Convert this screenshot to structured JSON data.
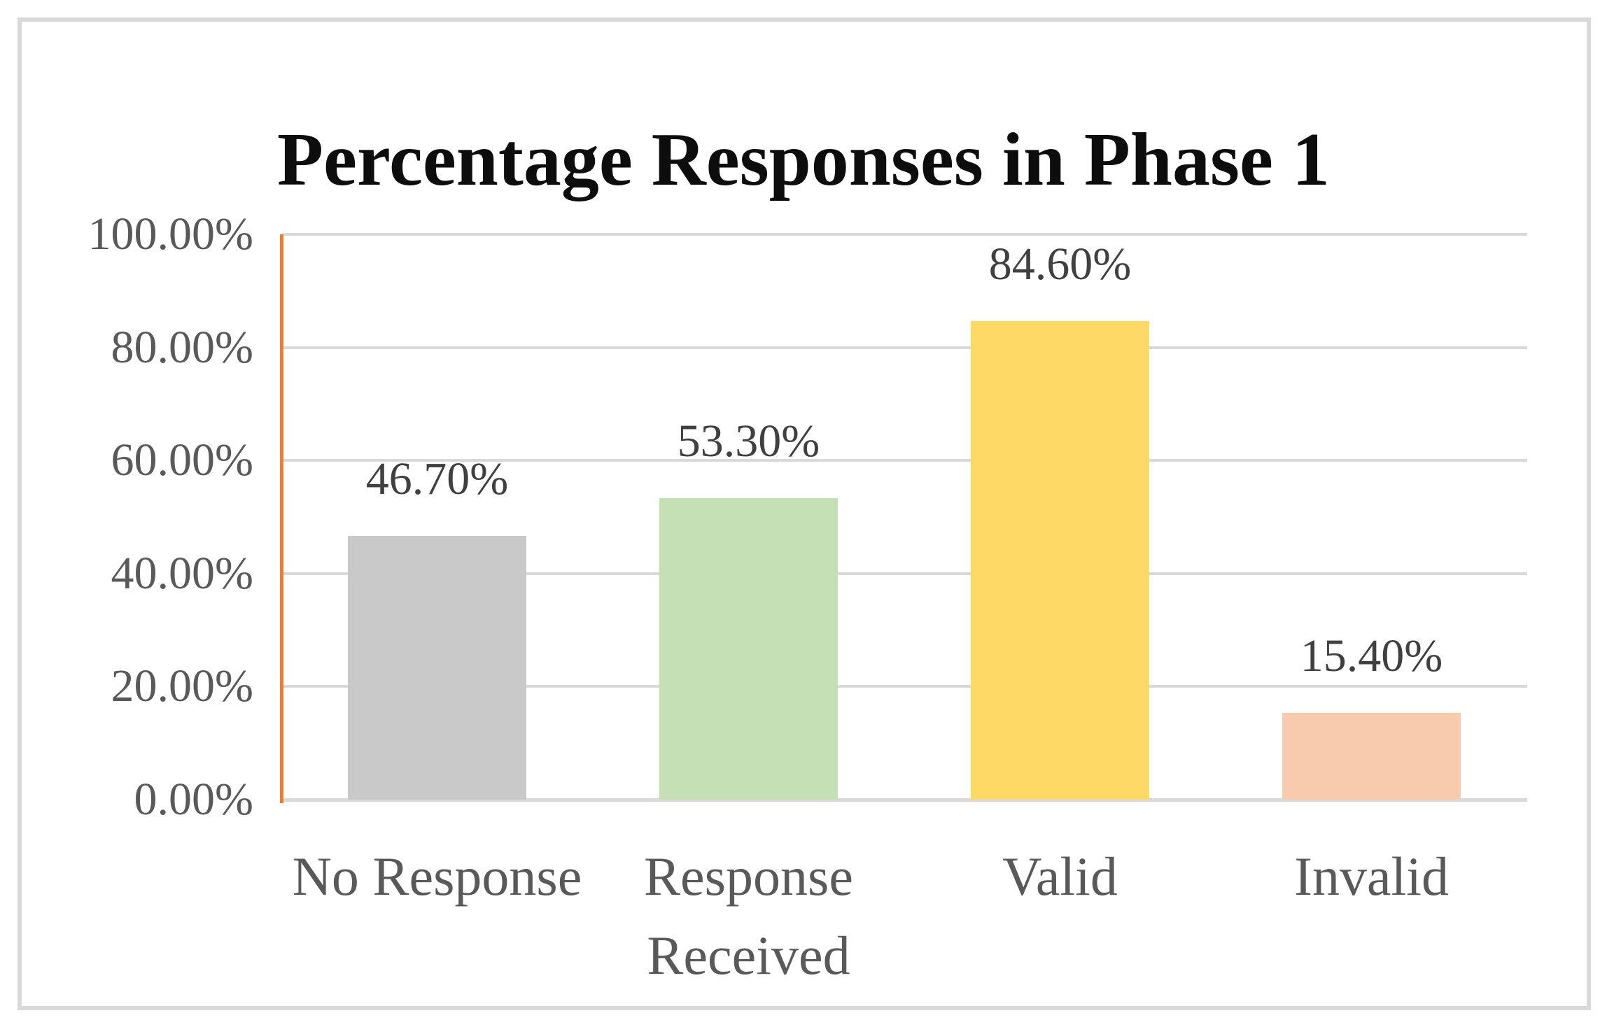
{
  "chart_data": {
    "type": "bar",
    "title": "Percentage Responses in Phase 1",
    "categories": [
      "No Response",
      "Response Received",
      "Valid",
      "Invalid"
    ],
    "values": [
      46.7,
      53.3,
      84.6,
      15.4
    ],
    "data_labels": [
      "46.70%",
      "53.30%",
      "84.60%",
      "15.40%"
    ],
    "xlabel": "",
    "ylabel": "",
    "y_axis": {
      "min": 0,
      "max": 100,
      "tick_values": [
        100,
        80,
        60,
        40,
        20,
        0
      ],
      "ticks": [
        "100.00%",
        "80.00%",
        "60.00%",
        "40.00%",
        "20.00%",
        "0.00%"
      ]
    },
    "grid": true,
    "legend_position": "none",
    "bar_colors": [
      "#C9C9C9",
      "#C5E0B4",
      "#FFD966",
      "#F8CBAD"
    ],
    "colors": {
      "background": "#FFFFFF",
      "border_frame": "#D9D9D9",
      "gridline": "#D9D9D9",
      "baseline": "#D9D9D9",
      "y_axis_line": "#ED7D31",
      "title_text": "#0D0D0D",
      "axis_text": "#595959",
      "data_label_text": "#404040"
    }
  }
}
